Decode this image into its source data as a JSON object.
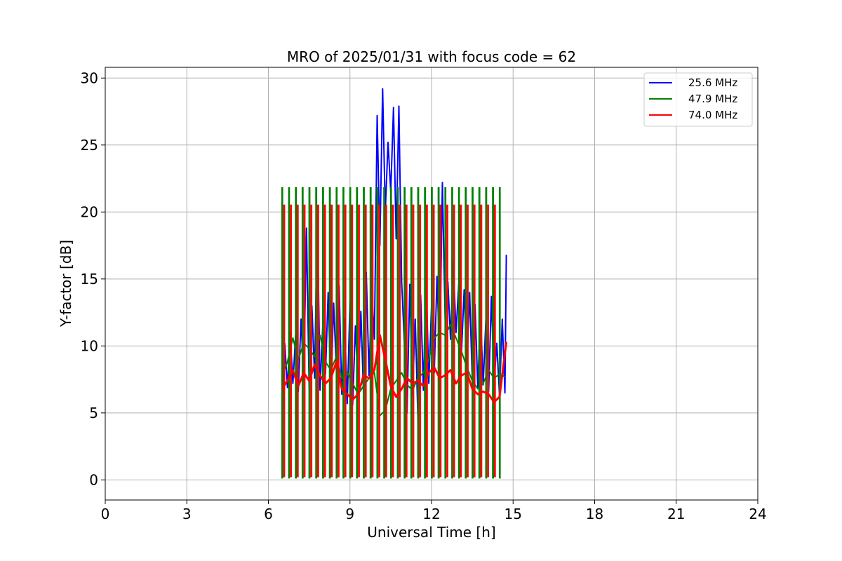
{
  "chart_data": {
    "type": "line",
    "title": "MRO of 2025/01/31 with focus code = 62",
    "xlabel": "Universal Time [h]",
    "ylabel": "Y-factor [dB]",
    "xlim": [
      0,
      24
    ],
    "ylim": [
      -1.5,
      30.8
    ],
    "xticks": [
      0,
      3,
      6,
      9,
      12,
      15,
      18,
      21,
      24
    ],
    "yticks": [
      0,
      5,
      10,
      15,
      20,
      25,
      30
    ],
    "grid": true,
    "legend_position": "top-right",
    "calibration": {
      "x_start": 6.5,
      "x_end": 14.55,
      "period_h": 0.25
    },
    "series": [
      {
        "name": "25.6 MHz",
        "color": "#0000ff",
        "x": [
          6.5,
          6.6,
          6.7,
          6.8,
          6.9,
          7.0,
          7.1,
          7.2,
          7.3,
          7.4,
          7.5,
          7.6,
          7.7,
          7.8,
          7.9,
          8.0,
          8.1,
          8.2,
          8.3,
          8.4,
          8.5,
          8.6,
          8.7,
          8.8,
          8.9,
          9.0,
          9.1,
          9.2,
          9.3,
          9.4,
          9.5,
          9.6,
          9.7,
          9.8,
          9.9,
          10.0,
          10.1,
          10.2,
          10.3,
          10.4,
          10.5,
          10.6,
          10.7,
          10.8,
          10.9,
          11.0,
          11.1,
          11.2,
          11.3,
          11.4,
          11.5,
          11.6,
          11.7,
          11.8,
          11.9,
          12.0,
          12.1,
          12.2,
          12.3,
          12.4,
          12.5,
          12.6,
          12.7,
          12.8,
          12.9,
          13.0,
          13.1,
          13.2,
          13.3,
          13.4,
          13.5,
          13.6,
          13.7,
          13.8,
          13.9,
          14.0,
          14.1,
          14.2,
          14.3,
          14.4,
          14.5,
          14.6,
          14.7,
          14.75
        ],
        "y": [
          4.1,
          10.2,
          6.9,
          11.0,
          7.2,
          10.8,
          6.6,
          12.0,
          7.4,
          18.8,
          6.8,
          13.0,
          7.6,
          20.2,
          6.7,
          11.5,
          7.9,
          14.0,
          6.5,
          13.2,
          8.2,
          14.5,
          6.4,
          12.0,
          5.7,
          13.3,
          5.6,
          11.5,
          7.0,
          12.6,
          6.4,
          15.5,
          7.8,
          14.2,
          10.5,
          27.2,
          17.5,
          29.2,
          20.0,
          25.2,
          21.5,
          27.8,
          18.0,
          27.9,
          14.8,
          10.2,
          5.0,
          14.6,
          6.3,
          12.0,
          4.5,
          13.8,
          6.7,
          15.5,
          7.2,
          13.0,
          8.0,
          15.2,
          9.0,
          22.2,
          12.0,
          14.8,
          10.5,
          16.3,
          11.0,
          14.6,
          9.4,
          14.2,
          8.5,
          14.0,
          7.4,
          13.1,
          6.9,
          12.5,
          7.1,
          12.0,
          6.6,
          13.7,
          7.2,
          10.2,
          6.3,
          12.0,
          6.5,
          16.8
        ]
      },
      {
        "name": "47.9 MHz",
        "color": "#008000",
        "x": [
          6.5,
          6.7,
          6.9,
          7.1,
          7.3,
          7.5,
          7.7,
          7.9,
          8.1,
          8.3,
          8.5,
          8.7,
          8.9,
          9.1,
          9.3,
          9.5,
          9.7,
          9.9,
          10.1,
          10.3,
          10.5,
          10.7,
          10.9,
          11.1,
          11.3,
          11.5,
          11.7,
          11.9,
          12.1,
          12.3,
          12.5,
          12.7,
          12.9,
          13.1,
          13.3,
          13.5,
          13.7,
          13.9,
          14.1,
          14.3,
          14.5,
          14.7
        ],
        "y": [
          7.8,
          8.8,
          10.6,
          9.0,
          10.2,
          9.8,
          9.2,
          10.8,
          8.8,
          8.2,
          9.2,
          7.6,
          8.0,
          7.2,
          6.4,
          7.0,
          7.6,
          8.0,
          4.8,
          5.2,
          6.8,
          7.4,
          8.0,
          7.1,
          6.7,
          7.6,
          8.0,
          9.0,
          10.6,
          11.0,
          10.8,
          11.6,
          10.6,
          9.6,
          8.4,
          7.4,
          6.8,
          7.2,
          8.2,
          7.6,
          7.9,
          7.7
        ]
      },
      {
        "name": "74.0 MHz",
        "color": "#ff0000",
        "x": [
          6.5,
          6.7,
          6.9,
          7.1,
          7.3,
          7.5,
          7.7,
          7.9,
          8.1,
          8.3,
          8.5,
          8.7,
          8.9,
          9.1,
          9.3,
          9.5,
          9.7,
          9.9,
          10.1,
          10.3,
          10.5,
          10.7,
          10.9,
          11.1,
          11.3,
          11.5,
          11.7,
          11.9,
          12.1,
          12.3,
          12.5,
          12.7,
          12.9,
          13.1,
          13.3,
          13.5,
          13.7,
          13.9,
          14.1,
          14.3,
          14.5,
          14.75
        ],
        "y": [
          6.8,
          7.4,
          8.2,
          7.0,
          8.0,
          7.4,
          8.6,
          7.8,
          7.2,
          7.6,
          8.8,
          6.8,
          6.4,
          6.0,
          6.4,
          7.8,
          7.6,
          8.2,
          10.8,
          9.0,
          7.0,
          6.2,
          6.8,
          7.6,
          7.2,
          7.4,
          7.0,
          8.0,
          8.4,
          7.6,
          7.8,
          8.2,
          7.2,
          7.8,
          8.0,
          6.8,
          6.4,
          6.6,
          6.4,
          5.8,
          6.2,
          10.3
        ]
      },
      {
        "name": "",
        "color": "#008000",
        "kind": "calibration",
        "high": 21.8,
        "low": 0.1
      },
      {
        "name": "",
        "color": "#ff0000",
        "kind": "calibration",
        "high": 20.5,
        "low": 0.2
      }
    ]
  }
}
